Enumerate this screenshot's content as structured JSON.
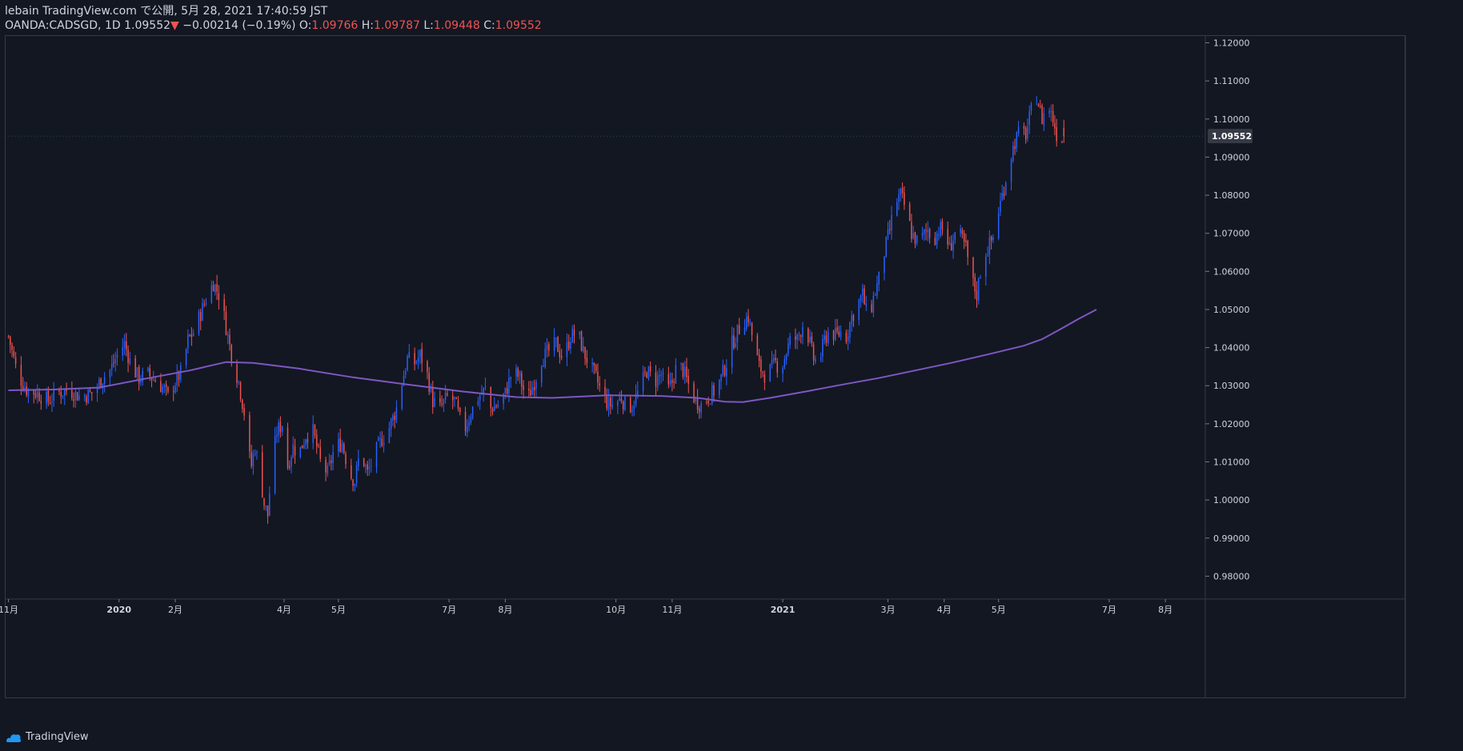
{
  "header": {
    "publish_line": "lebain TradingView.com で公開, 5月 28, 2021 17:40:59 JST",
    "symbol": "OANDA:CADSGD, 1D",
    "last": "1.09552",
    "arrow": "▼",
    "change": "−0.00214 (−0.19%)",
    "o_label": "O:",
    "o_value": "1.09766",
    "h_label": "H:",
    "h_value": "1.09787",
    "l_label": "L:",
    "l_value": "1.09448",
    "c_label": "C:",
    "c_value": "1.09552"
  },
  "footer": {
    "brand": "TradingView"
  },
  "colors": {
    "background": "#131722",
    "up": "#2962ff",
    "down": "#ef5350",
    "ma": "#7e57c2",
    "border": "#363a45",
    "text": "#d1d4dc"
  },
  "chart_data": {
    "type": "candlestick",
    "symbol": "OANDA:CADSGD",
    "interval": "1D",
    "last_price_label": "1.09552",
    "ylim": [
      0.974,
      1.122
    ],
    "y_ticks": [
      "0.98000",
      "0.99000",
      "1.00000",
      "1.01000",
      "1.02000",
      "1.03000",
      "1.04000",
      "1.05000",
      "1.06000",
      "1.07000",
      "1.08000",
      "1.09000",
      "1.10000",
      "1.11000",
      "1.12000"
    ],
    "x_ticks": [
      {
        "label": "11月",
        "day": 0
      },
      {
        "label": "2020",
        "day": 61
      },
      {
        "label": "2月",
        "day": 92
      },
      {
        "label": "4月",
        "day": 152
      },
      {
        "label": "5月",
        "day": 182
      },
      {
        "label": "7月",
        "day": 243
      },
      {
        "label": "8月",
        "day": 274
      },
      {
        "label": "10月",
        "day": 335
      },
      {
        "label": "11月",
        "day": 366
      },
      {
        "label": "2021",
        "day": 427
      },
      {
        "label": "3月",
        "day": 485
      },
      {
        "label": "4月",
        "day": 516
      },
      {
        "label": "5月",
        "day": 546
      },
      {
        "label": "7月",
        "day": 607
      },
      {
        "label": "8月",
        "day": 638
      }
    ],
    "x_range": [
      -2,
      660
    ],
    "close_path": [
      [
        0,
        1.043
      ],
      [
        5,
        1.033
      ],
      [
        10,
        1.029
      ],
      [
        16,
        1.028
      ],
      [
        22,
        1.026
      ],
      [
        27,
        1.028
      ],
      [
        33,
        1.029
      ],
      [
        40,
        1.027
      ],
      [
        46,
        1.028
      ],
      [
        52,
        1.032
      ],
      [
        56,
        1.034
      ],
      [
        61,
        1.039
      ],
      [
        64,
        1.041
      ],
      [
        68,
        1.035
      ],
      [
        72,
        1.032
      ],
      [
        77,
        1.033
      ],
      [
        82,
        1.031
      ],
      [
        86,
        1.029
      ],
      [
        88,
        1.027
      ],
      [
        92,
        1.031
      ],
      [
        96,
        1.034
      ],
      [
        99,
        1.042
      ],
      [
        102,
        1.044
      ],
      [
        106,
        1.049
      ],
      [
        110,
        1.054
      ],
      [
        113,
        1.057
      ],
      [
        116,
        1.054
      ],
      [
        119,
        1.048
      ],
      [
        123,
        1.038
      ],
      [
        127,
        1.031
      ],
      [
        130,
        1.023
      ],
      [
        132,
        1.013
      ],
      [
        134,
        1.009
      ],
      [
        136,
        1.014
      ],
      [
        139,
        1.006
      ],
      [
        141,
        0.999
      ],
      [
        143,
        0.996
      ],
      [
        145,
        1.008
      ],
      [
        148,
        1.018
      ],
      [
        151,
        1.02
      ],
      [
        154,
        1.009
      ],
      [
        157,
        1.014
      ],
      [
        160,
        1.012
      ],
      [
        164,
        1.017
      ],
      [
        168,
        1.018
      ],
      [
        172,
        1.01
      ],
      [
        176,
        1.007
      ],
      [
        180,
        1.014
      ],
      [
        184,
        1.015
      ],
      [
        188,
        1.007
      ],
      [
        191,
        1.005
      ],
      [
        194,
        1.013
      ],
      [
        198,
        1.007
      ],
      [
        202,
        1.012
      ],
      [
        206,
        1.016
      ],
      [
        210,
        1.019
      ],
      [
        214,
        1.024
      ],
      [
        217,
        1.031
      ],
      [
        220,
        1.037
      ],
      [
        224,
        1.036
      ],
      [
        227,
        1.038
      ],
      [
        230,
        1.035
      ],
      [
        234,
        1.026
      ],
      [
        238,
        1.024
      ],
      [
        242,
        1.027
      ],
      [
        246,
        1.026
      ],
      [
        249,
        1.021
      ],
      [
        252,
        1.019
      ],
      [
        255,
        1.023
      ],
      [
        259,
        1.027
      ],
      [
        263,
        1.029
      ],
      [
        266,
        1.024
      ],
      [
        270,
        1.025
      ],
      [
        274,
        1.028
      ],
      [
        278,
        1.034
      ],
      [
        282,
        1.032
      ],
      [
        286,
        1.026
      ],
      [
        290,
        1.031
      ],
      [
        294,
        1.037
      ],
      [
        298,
        1.039
      ],
      [
        302,
        1.041
      ],
      [
        306,
        1.037
      ],
      [
        310,
        1.043
      ],
      [
        314,
        1.044
      ],
      [
        317,
        1.039
      ],
      [
        320,
        1.036
      ],
      [
        324,
        1.032
      ],
      [
        328,
        1.027
      ],
      [
        331,
        1.025
      ],
      [
        334,
        1.025
      ],
      [
        338,
        1.027
      ],
      [
        341,
        1.024
      ],
      [
        344,
        1.025
      ],
      [
        348,
        1.029
      ],
      [
        352,
        1.034
      ],
      [
        356,
        1.031
      ],
      [
        360,
        1.033
      ],
      [
        363,
        1.028
      ],
      [
        366,
        1.031
      ],
      [
        369,
        1.036
      ],
      [
        372,
        1.034
      ],
      [
        376,
        1.029
      ],
      [
        379,
        1.026
      ],
      [
        382,
        1.025
      ],
      [
        386,
        1.027
      ],
      [
        390,
        1.029
      ],
      [
        393,
        1.032
      ],
      [
        396,
        1.036
      ],
      [
        399,
        1.041
      ],
      [
        402,
        1.044
      ],
      [
        405,
        1.047
      ],
      [
        408,
        1.048
      ],
      [
        411,
        1.041
      ],
      [
        414,
        1.035
      ],
      [
        417,
        1.033
      ],
      [
        420,
        1.034
      ],
      [
        423,
        1.036
      ],
      [
        426,
        1.034
      ],
      [
        429,
        1.039
      ],
      [
        432,
        1.043
      ],
      [
        435,
        1.042
      ],
      [
        438,
        1.046
      ],
      [
        441,
        1.043
      ],
      [
        444,
        1.037
      ],
      [
        447,
        1.036
      ],
      [
        450,
        1.042
      ],
      [
        453,
        1.045
      ],
      [
        456,
        1.043
      ],
      [
        459,
        1.044
      ],
      [
        462,
        1.043
      ],
      [
        465,
        1.048
      ],
      [
        468,
        1.051
      ],
      [
        471,
        1.054
      ],
      [
        474,
        1.047
      ],
      [
        477,
        1.053
      ],
      [
        480,
        1.058
      ],
      [
        483,
        1.065
      ],
      [
        486,
        1.071
      ],
      [
        489,
        1.078
      ],
      [
        492,
        1.08
      ],
      [
        495,
        1.076
      ],
      [
        498,
        1.07
      ],
      [
        501,
        1.068
      ],
      [
        504,
        1.069
      ],
      [
        507,
        1.071
      ],
      [
        510,
        1.068
      ],
      [
        513,
        1.071
      ],
      [
        516,
        1.071
      ],
      [
        519,
        1.066
      ],
      [
        522,
        1.07
      ],
      [
        525,
        1.069
      ],
      [
        528,
        1.066
      ],
      [
        531,
        1.058
      ],
      [
        534,
        1.054
      ],
      [
        537,
        1.063
      ],
      [
        540,
        1.066
      ],
      [
        543,
        1.069
      ],
      [
        546,
        1.076
      ],
      [
        549,
        1.082
      ],
      [
        552,
        1.089
      ],
      [
        555,
        1.094
      ],
      [
        558,
        1.097
      ],
      [
        561,
        1.096
      ],
      [
        564,
        1.102
      ],
      [
        567,
        1.106
      ],
      [
        570,
        1.1
      ],
      [
        573,
        1.104
      ],
      [
        576,
        1.1
      ],
      [
        579,
        1.094
      ],
      [
        582,
        1.0955
      ]
    ],
    "moving_average": {
      "period": 200,
      "points": [
        [
          0,
          1.0288
        ],
        [
          25,
          1.029
        ],
        [
          50,
          1.0295
        ],
        [
          75,
          1.0318
        ],
        [
          100,
          1.034
        ],
        [
          120,
          1.0362
        ],
        [
          135,
          1.036
        ],
        [
          160,
          1.0345
        ],
        [
          190,
          1.0322
        ],
        [
          220,
          1.0303
        ],
        [
          250,
          1.0285
        ],
        [
          280,
          1.027
        ],
        [
          300,
          1.0268
        ],
        [
          330,
          1.0275
        ],
        [
          360,
          1.0273
        ],
        [
          380,
          1.0268
        ],
        [
          395,
          1.0258
        ],
        [
          405,
          1.0257
        ],
        [
          420,
          1.0268
        ],
        [
          440,
          1.0285
        ],
        [
          460,
          1.0303
        ],
        [
          480,
          1.032
        ],
        [
          500,
          1.034
        ],
        [
          520,
          1.036
        ],
        [
          540,
          1.0382
        ],
        [
          560,
          1.0405
        ],
        [
          570,
          1.0422
        ],
        [
          580,
          1.0448
        ],
        [
          590,
          1.0475
        ],
        [
          600,
          1.05
        ]
      ]
    }
  }
}
